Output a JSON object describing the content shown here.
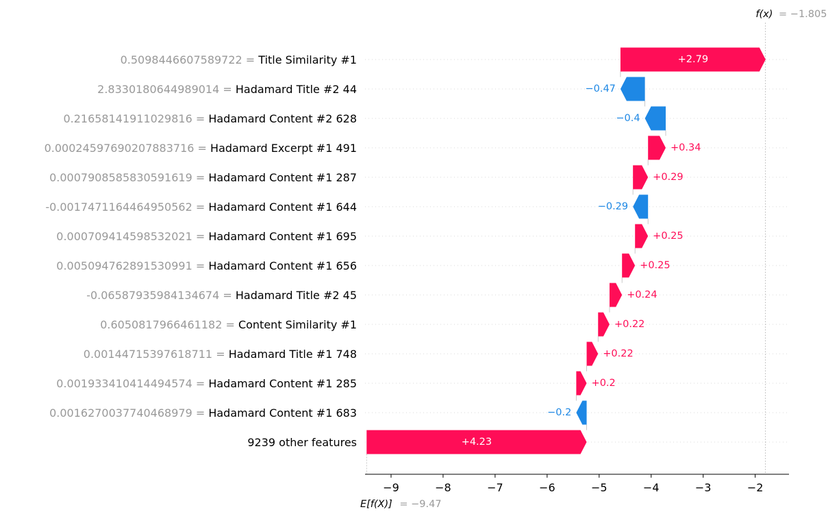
{
  "chart_data": {
    "type": "waterfall",
    "base_value": -9.47,
    "output_value": -1.805,
    "x_ticks": [
      -9,
      -8,
      -7,
      -6,
      -5,
      -4,
      -3,
      -2
    ],
    "x_tick_labels": [
      "−9",
      "−8",
      "−7",
      "−6",
      "−5",
      "−4",
      "−3",
      "−2"
    ],
    "xlim": [
      -9.5,
      -1.35
    ],
    "annotations": {
      "fx_label": "f(x)",
      "fx_value": "= −1.805",
      "efx_label": "E[f(X)]",
      "efx_value": "= −9.47"
    },
    "colors": {
      "positive": "#ff0d57",
      "negative": "#1e88e5",
      "value_text": "#999999"
    },
    "features": [
      {
        "value": "0.5098446607589722 =",
        "name": "Title Similarity #1",
        "contribution": 2.79,
        "label": "+2.79"
      },
      {
        "value": "2.8330180644989014 =",
        "name": "Hadamard Title #2 44",
        "contribution": -0.47,
        "label": "−0.47"
      },
      {
        "value": "0.21658141911029816 =",
        "name": "Hadamard Content #2 628",
        "contribution": -0.4,
        "label": "−0.4"
      },
      {
        "value": "0.00024597690207883716 =",
        "name": "Hadamard Excerpt #1 491",
        "contribution": 0.34,
        "label": "+0.34"
      },
      {
        "value": "0.0007908585830591619 =",
        "name": "Hadamard Content #1 287",
        "contribution": 0.29,
        "label": "+0.29"
      },
      {
        "value": "-0.0017471164464950562 =",
        "name": "Hadamard Content #1 644",
        "contribution": -0.29,
        "label": "−0.29"
      },
      {
        "value": "0.000709414598532021 =",
        "name": "Hadamard Content #1 695",
        "contribution": 0.25,
        "label": "+0.25"
      },
      {
        "value": "0.005094762891530991 =",
        "name": "Hadamard Content #1 656",
        "contribution": 0.25,
        "label": "+0.25"
      },
      {
        "value": "-0.06587935984134674 =",
        "name": "Hadamard Title #2 45",
        "contribution": 0.24,
        "label": "+0.24"
      },
      {
        "value": "0.6050817966461182 =",
        "name": "Content Similarity #1",
        "contribution": 0.22,
        "label": "+0.22"
      },
      {
        "value": "0.00144715397618711 =",
        "name": "Hadamard Title #1 748",
        "contribution": 0.22,
        "label": "+0.22"
      },
      {
        "value": "0.001933410414494574 =",
        "name": "Hadamard Content #1 285",
        "contribution": 0.2,
        "label": "+0.2"
      },
      {
        "value": "0.0016270037740468979 =",
        "name": "Hadamard Content #1 683",
        "contribution": -0.2,
        "label": "−0.2"
      },
      {
        "value": "",
        "name": "9239 other features",
        "contribution": 4.23,
        "label": "+4.23"
      }
    ]
  }
}
